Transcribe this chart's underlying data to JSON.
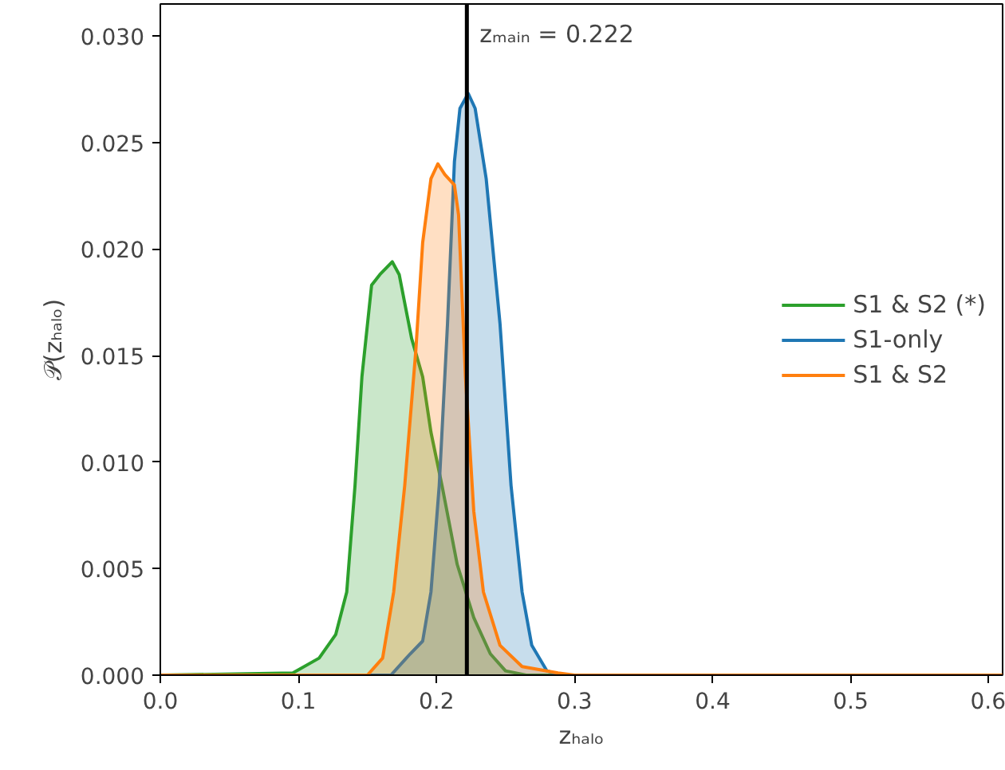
{
  "chart_data": {
    "type": "area",
    "xlabel": "zₕₐₗₒ",
    "ylabel": "𝒫(zₕₐₗₒ)",
    "xlim": [
      0,
      0.61
    ],
    "ylim": [
      0,
      0.0315
    ],
    "xticks": [
      {
        "value": 0,
        "label": "0.0"
      },
      {
        "value": 0.1,
        "label": "0.1"
      },
      {
        "value": 0.2,
        "label": "0.2"
      },
      {
        "value": 0.3,
        "label": "0.3"
      },
      {
        "value": 0.4,
        "label": "0.4"
      },
      {
        "value": 0.5,
        "label": "0.5"
      },
      {
        "value": 0.6,
        "label": "0.6"
      }
    ],
    "yticks": [
      {
        "value": 0,
        "label": "0.000"
      },
      {
        "value": 0.005,
        "label": "0.005"
      },
      {
        "value": 0.01,
        "label": "0.010"
      },
      {
        "value": 0.015,
        "label": "0.015"
      },
      {
        "value": 0.02,
        "label": "0.020"
      },
      {
        "value": 0.025,
        "label": "0.025"
      },
      {
        "value": 0.03,
        "label": "0.030"
      }
    ],
    "series": [
      {
        "name": "S1 & S2 (*)",
        "color": "#2ca02c",
        "x": [
          0,
          0.096,
          0.115,
          0.127,
          0.135,
          0.141,
          0.146,
          0.153,
          0.159,
          0.168,
          0.173,
          0.182,
          0.19,
          0.196,
          0.204,
          0.215,
          0.227,
          0.239,
          0.25,
          0.265,
          0.61
        ],
        "values": [
          0,
          0.0001,
          0.0008,
          0.0019,
          0.0039,
          0.0089,
          0.014,
          0.0183,
          0.0188,
          0.0194,
          0.0188,
          0.0158,
          0.014,
          0.0114,
          0.0089,
          0.0052,
          0.0027,
          0.001,
          0.0002,
          0,
          0
        ]
      },
      {
        "name": "S1-only",
        "color": "#1f77b4",
        "x": [
          0,
          0.167,
          0.181,
          0.19,
          0.196,
          0.202,
          0.208,
          0.213,
          0.217,
          0.223,
          0.228,
          0.236,
          0.246,
          0.254,
          0.262,
          0.269,
          0.28,
          0.29,
          0.61
        ],
        "values": [
          0,
          0,
          0.001,
          0.0016,
          0.0039,
          0.0089,
          0.0165,
          0.0241,
          0.0266,
          0.0273,
          0.0266,
          0.0233,
          0.0165,
          0.0089,
          0.0039,
          0.0014,
          0.0002,
          0,
          0
        ]
      },
      {
        "name": "S1 & S2",
        "color": "#ff7f0e",
        "x": [
          0,
          0.15,
          0.161,
          0.169,
          0.177,
          0.185,
          0.19,
          0.196,
          0.201,
          0.206,
          0.213,
          0.216,
          0.221,
          0.227,
          0.234,
          0.246,
          0.262,
          0.288,
          0.3,
          0.61
        ],
        "values": [
          0,
          0,
          0.0008,
          0.0039,
          0.0089,
          0.0152,
          0.0203,
          0.0233,
          0.024,
          0.0235,
          0.023,
          0.0216,
          0.014,
          0.0077,
          0.0039,
          0.0014,
          0.0004,
          0.0001,
          0,
          0
        ]
      }
    ],
    "ref_lines": [
      {
        "axis": "x",
        "value": 0.222,
        "label": "zₘₐᵢₙ = 0.222",
        "color": "#000000"
      }
    ],
    "legend": "right"
  }
}
